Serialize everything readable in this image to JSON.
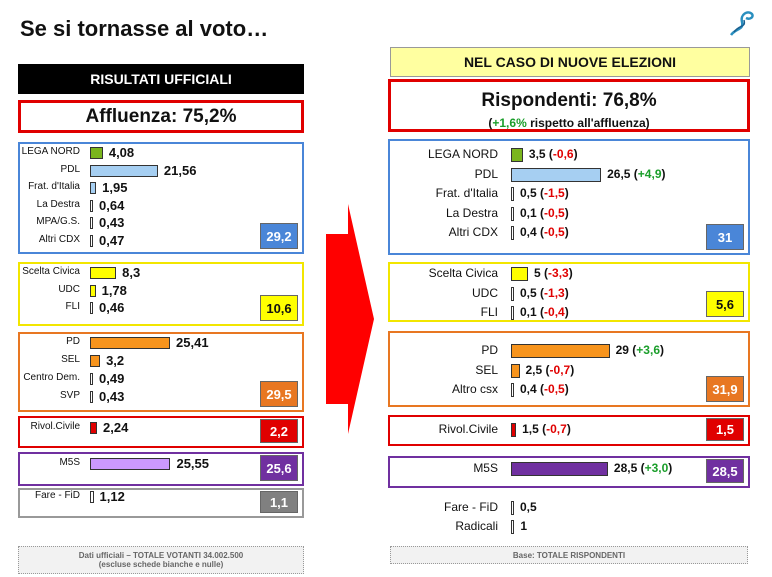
{
  "page_title": "Se si tornasse al voto…",
  "left": {
    "header": "RISULTATI UFFICIALI",
    "affluenza_label": "Affluenza: 75,2%",
    "groups": [
      {
        "color": "#4a86d8",
        "total": "29,2",
        "total_bg": "#4a86d8",
        "total_fg": "#fff",
        "rows": [
          {
            "label": "LEGA NORD",
            "value": 4.08,
            "text": "4,08",
            "color": "#7ab51d"
          },
          {
            "label": "PDL",
            "value": 21.56,
            "text": "21,56",
            "color": "#a6cff2"
          },
          {
            "label": "Frat. d'Italia",
            "value": 1.95,
            "text": "1,95",
            "color": "#a6cff2"
          },
          {
            "label": "La Destra",
            "value": 0.64,
            "text": "0,64",
            "color": "#ffffff"
          },
          {
            "label": "MPA/G.S.",
            "value": 0.43,
            "text": "0,43",
            "color": "#ffffff"
          },
          {
            "label": "Altri CDX",
            "value": 0.47,
            "text": "0,47",
            "color": "#ffffff"
          }
        ]
      },
      {
        "color": "#f2e600",
        "total": "10,6",
        "total_bg": "#ffff00",
        "total_fg": "#111",
        "rows": [
          {
            "label": "Scelta Civica",
            "value": 8.3,
            "text": "8,3",
            "color": "#ffff00"
          },
          {
            "label": "UDC",
            "value": 1.78,
            "text": "1,78",
            "color": "#ffff00"
          },
          {
            "label": "FLI",
            "value": 0.46,
            "text": "0,46",
            "color": "#ffffff"
          }
        ]
      },
      {
        "color": "#e87722",
        "total": "29,5",
        "total_bg": "#e87722",
        "total_fg": "#fff",
        "rows": [
          {
            "label": "PD",
            "value": 25.41,
            "text": "25,41",
            "color": "#f7941d"
          },
          {
            "label": "SEL",
            "value": 3.2,
            "text": "3,2",
            "color": "#f7941d"
          },
          {
            "label": "Centro Dem.",
            "value": 0.49,
            "text": "0,49",
            "color": "#ffffff"
          },
          {
            "label": "SVP",
            "value": 0.43,
            "text": "0,43",
            "color": "#ffffff"
          }
        ]
      },
      {
        "color": "#e00000",
        "total": "2,2",
        "total_bg": "#e00000",
        "total_fg": "#fff",
        "rows": [
          {
            "label": "Rivol.Civile",
            "value": 2.24,
            "text": "2,24",
            "color": "#e00000"
          }
        ]
      },
      {
        "color": "#7030a0",
        "total": "25,6",
        "total_bg": "#7030a0",
        "total_fg": "#fff",
        "rows": [
          {
            "label": "M5S",
            "value": 25.55,
            "text": "25,55",
            "color": "#cc99ff"
          }
        ]
      },
      {
        "color": "#999999",
        "total": "1,1",
        "total_bg": "#808080",
        "total_fg": "#fff",
        "rows": [
          {
            "label": "Fare - FiD",
            "value": 1.12,
            "text": "1,12",
            "color": "#ffffff"
          }
        ]
      }
    ],
    "footer_line1": "Dati ufficiali – TOTALE VOTANTI 34.002.500",
    "footer_line2": "(escluse schede bianche e nulle)"
  },
  "right": {
    "header": "NEL CASO DI NUOVE ELEZIONI",
    "rispondenti_label": "Rispondenti: 76,8%",
    "rispondenti_delta": "+1,6%",
    "rispondenti_note": "rispetto all'affluenza",
    "groups": [
      {
        "color": "#4a86d8",
        "total": "31",
        "total_bg": "#4a86d8",
        "total_fg": "#fff",
        "rows": [
          {
            "label": "LEGA NORD",
            "value": 3.5,
            "text": "3,5",
            "delta": "-0,6",
            "color": "#7ab51d"
          },
          {
            "label": "PDL",
            "value": 26.5,
            "text": "26,5",
            "delta": "+4,9",
            "color": "#a6cff2"
          },
          {
            "label": "Frat. d'Italia",
            "value": 0.5,
            "text": "0,5",
            "delta": "-1,5",
            "color": "#ffffff"
          },
          {
            "label": "La Destra",
            "value": 0.1,
            "text": "0,1",
            "delta": "-0,5",
            "color": "#ffffff"
          },
          {
            "label": "Altri CDX",
            "value": 0.4,
            "text": "0,4",
            "delta": "-0,5",
            "color": "#ffffff"
          }
        ]
      },
      {
        "color": "#f2e600",
        "total": "5,6",
        "total_bg": "#ffff00",
        "total_fg": "#111",
        "rows": [
          {
            "label": "Scelta Civica",
            "value": 5,
            "text": "5",
            "delta": "-3,3",
            "color": "#ffff00"
          },
          {
            "label": "UDC",
            "value": 0.5,
            "text": "0,5",
            "delta": "-1,3",
            "color": "#ffffff"
          },
          {
            "label": "FLI",
            "value": 0.1,
            "text": "0,1",
            "delta": "-0,4",
            "color": "#ffffff"
          }
        ]
      },
      {
        "color": "#e87722",
        "total": "31,9",
        "total_bg": "#e87722",
        "total_fg": "#fff",
        "rows": [
          {
            "label": "PD",
            "value": 29,
            "text": "29",
            "delta": "+3,6",
            "color": "#f7941d"
          },
          {
            "label": "SEL",
            "value": 2.5,
            "text": "2,5",
            "delta": "-0,7",
            "color": "#f7941d"
          },
          {
            "label": "Altro csx",
            "value": 0.4,
            "text": "0,4",
            "delta": "-0,5",
            "color": "#ffffff"
          }
        ]
      },
      {
        "color": "#e00000",
        "total": "1,5",
        "total_bg": "#e00000",
        "total_fg": "#fff",
        "rows": [
          {
            "label": "Rivol.Civile",
            "value": 1.5,
            "text": "1,5",
            "delta": "-0,7",
            "color": "#e00000"
          }
        ]
      },
      {
        "color": "#7030a0",
        "total": "28,5",
        "total_bg": "#7030a0",
        "total_fg": "#fff",
        "rows": [
          {
            "label": "M5S",
            "value": 28.5,
            "text": "28,5",
            "delta": "+3,0",
            "color": "#7030a0"
          }
        ]
      },
      {
        "color": null,
        "total": null,
        "rows": [
          {
            "label": "Fare - FiD",
            "value": 0.5,
            "text": "0,5",
            "delta": null,
            "color": "#ffffff"
          },
          {
            "label": "Radicali",
            "value": 1,
            "text": "1",
            "delta": null,
            "color": "#ffffff"
          }
        ]
      }
    ],
    "footer": "Base: TOTALE RISPONDENTI"
  },
  "chart_data": [
    {
      "type": "bar",
      "title": "RISULTATI UFFICIALI",
      "categories": [
        "LEGA NORD",
        "PDL",
        "Frat. d'Italia",
        "La Destra",
        "MPA/G.S.",
        "Altri CDX",
        "Scelta Civica",
        "UDC",
        "FLI",
        "PD",
        "SEL",
        "Centro Dem.",
        "SVP",
        "Rivol.Civile",
        "M5S",
        "Fare - FiD"
      ],
      "values": [
        4.08,
        21.56,
        1.95,
        0.64,
        0.43,
        0.47,
        8.3,
        1.78,
        0.46,
        25.41,
        3.2,
        0.49,
        0.43,
        2.24,
        25.55,
        1.12
      ],
      "group_totals": [
        29.2,
        10.6,
        29.5,
        2.2,
        25.6,
        1.1
      ]
    },
    {
      "type": "bar",
      "title": "NEL CASO DI NUOVE ELEZIONI",
      "categories": [
        "LEGA NORD",
        "PDL",
        "Frat. d'Italia",
        "La Destra",
        "Altri CDX",
        "Scelta Civica",
        "UDC",
        "FLI",
        "PD",
        "SEL",
        "Altro csx",
        "Rivol.Civile",
        "M5S",
        "Fare - FiD",
        "Radicali"
      ],
      "values": [
        3.5,
        26.5,
        0.5,
        0.1,
        0.4,
        5,
        0.5,
        0.1,
        29,
        2.5,
        0.4,
        1.5,
        28.5,
        0.5,
        1
      ],
      "changes": [
        -0.6,
        4.9,
        -1.5,
        -0.5,
        -0.5,
        -3.3,
        -1.3,
        -0.4,
        3.6,
        -0.7,
        -0.5,
        -0.7,
        3.0,
        null,
        null
      ],
      "group_totals": [
        31,
        5.6,
        31.9,
        1.5,
        28.5
      ]
    }
  ]
}
